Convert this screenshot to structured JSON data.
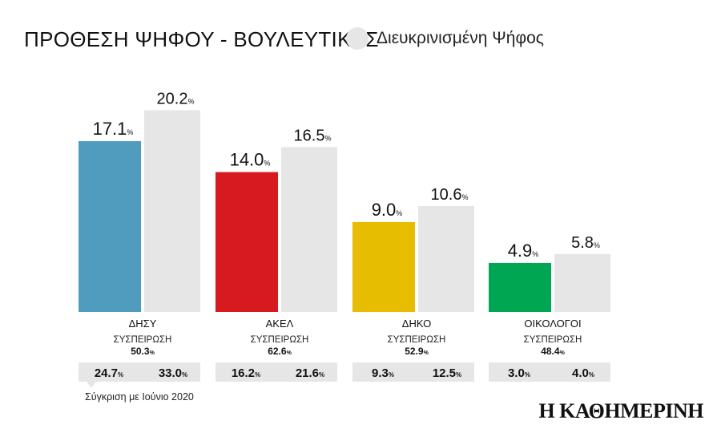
{
  "header": {
    "title": "ΠΡΟΘΕΣΗ ΨΗΦΟΥ - ΒΟΥΛΕΥΤΙΚΕΣ",
    "legend_label": "Διευκρινισμένη Ψήφος"
  },
  "footer": {
    "note": "Σύγκριση με Ιούνιο 2020",
    "logo": "Η ΚΑΘΗΜΕΡΙΝΗ"
  },
  "colors": {
    "grey_bar": "#e6e6e6",
    "compare_box": "#e6e6e6"
  },
  "chart_data": {
    "type": "bar",
    "categories": [
      "ΔΗΣΥ",
      "ΑΚΕΛ",
      "ΔΗΚΟ",
      "ΟΙΚΟΛΟΓΟΙ"
    ],
    "ylim": [
      0,
      22
    ],
    "series": [
      {
        "values": [
          17.1,
          14.0,
          9.0,
          4.9
        ],
        "labels": [
          "17.1",
          "14.0",
          "9.0",
          "4.9"
        ],
        "colors": [
          "#4f9cbf",
          "#d71920",
          "#e6bd00",
          "#00a651"
        ]
      },
      {
        "name": "Διευκρινισμένη Ψήφος",
        "values": [
          20.2,
          16.5,
          10.6,
          5.8
        ],
        "labels": [
          "20.2",
          "16.5",
          "10.6",
          "5.8"
        ],
        "color": "#e6e6e6"
      }
    ],
    "percent_sign": "%",
    "retention_label": "ΣΥΣΠΕΙΡΩΣΗ",
    "retention": [
      "50.3",
      "62.6",
      "52.9",
      "48.4"
    ],
    "comparison_june_2020": [
      [
        "24.7",
        "33.0"
      ],
      [
        "16.2",
        "21.6"
      ],
      [
        "9.3",
        "12.5"
      ],
      [
        "3.0",
        "4.0"
      ]
    ]
  }
}
